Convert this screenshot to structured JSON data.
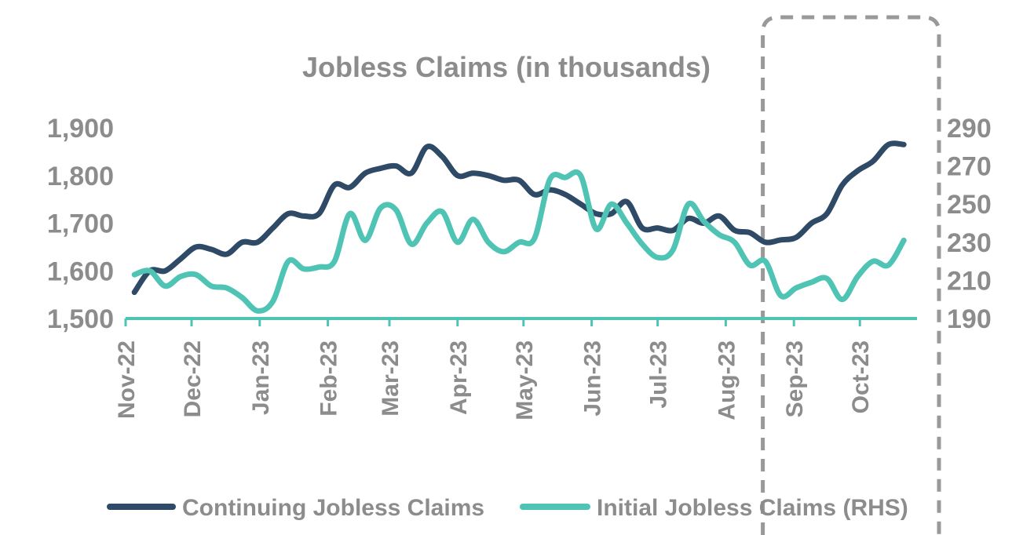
{
  "chart_data": {
    "type": "line",
    "title": "Jobless Claims (in thousands)",
    "x": [
      "2022-11-05",
      "2022-11-12",
      "2022-11-19",
      "2022-11-26",
      "2022-12-03",
      "2022-12-10",
      "2022-12-17",
      "2022-12-24",
      "2022-12-31",
      "2023-01-07",
      "2023-01-14",
      "2023-01-21",
      "2023-01-28",
      "2023-02-04",
      "2023-02-11",
      "2023-02-18",
      "2023-02-25",
      "2023-03-04",
      "2023-03-11",
      "2023-03-18",
      "2023-03-25",
      "2023-04-01",
      "2023-04-08",
      "2023-04-15",
      "2023-04-22",
      "2023-04-29",
      "2023-05-06",
      "2023-05-13",
      "2023-05-20",
      "2023-05-27",
      "2023-06-03",
      "2023-06-10",
      "2023-06-17",
      "2023-06-24",
      "2023-07-01",
      "2023-07-08",
      "2023-07-15",
      "2023-07-22",
      "2023-07-29",
      "2023-08-05",
      "2023-08-12",
      "2023-08-19",
      "2023-08-26",
      "2023-09-02",
      "2023-09-09",
      "2023-09-16",
      "2023-09-23",
      "2023-09-30",
      "2023-10-07",
      "2023-10-14",
      "2023-10-21"
    ],
    "series": [
      {
        "name": "Continuing Jobless Claims",
        "axis": "left",
        "color": "#2e4a66",
        "values": [
          1555,
          1600,
          1600,
          1625,
          1650,
          1645,
          1635,
          1660,
          1660,
          1690,
          1720,
          1715,
          1720,
          1780,
          1775,
          1805,
          1815,
          1820,
          1805,
          1860,
          1840,
          1800,
          1805,
          1800,
          1790,
          1790,
          1760,
          1770,
          1760,
          1740,
          1720,
          1720,
          1745,
          1690,
          1690,
          1685,
          1710,
          1700,
          1715,
          1685,
          1680,
          1660,
          1665,
          1670,
          1700,
          1720,
          1780,
          1810,
          1830,
          1865,
          1865
        ]
      },
      {
        "name": "Initial Jobless Claims (RHS)",
        "axis": "right",
        "color": "#4fc4b4",
        "values": [
          213,
          215,
          207,
          212,
          213,
          207,
          206,
          201,
          194,
          199,
          220,
          216,
          217,
          220,
          245,
          231,
          248,
          247,
          229,
          240,
          246,
          230,
          242,
          230,
          225,
          230,
          232,
          263,
          264,
          265,
          237,
          250,
          240,
          229,
          222,
          226,
          250,
          241,
          234,
          230,
          218,
          220,
          202,
          206,
          209,
          211,
          200,
          212,
          220,
          218,
          231
        ]
      }
    ],
    "x_ticks": [
      "Nov-22",
      "Dec-22",
      "Jan-23",
      "Feb-23",
      "Mar-23",
      "Apr-23",
      "May-23",
      "Jun-23",
      "Jul-23",
      "Aug-23",
      "Sep-23",
      "Oct-23"
    ],
    "x_tick_dates": [
      "2022-11-01",
      "2022-12-01",
      "2023-01-01",
      "2023-02-01",
      "2023-03-01",
      "2023-04-01",
      "2023-05-01",
      "2023-06-01",
      "2023-07-01",
      "2023-08-01",
      "2023-09-01",
      "2023-10-01"
    ],
    "y_left": {
      "ylim": [
        1500,
        1900
      ],
      "ticks": [
        "1,500",
        "1,600",
        "1,700",
        "1,800",
        "1,900"
      ]
    },
    "y_right": {
      "ylim": [
        190,
        290
      ],
      "ticks": [
        "190",
        "210",
        "230",
        "250",
        "270",
        "290"
      ]
    },
    "highlight_from": "2023-08-15",
    "legend_placement": "bottom",
    "grid": false,
    "axis_color": "#4fc4b4",
    "text_color": "#8c8c8c",
    "highlight_color": "#999999"
  }
}
